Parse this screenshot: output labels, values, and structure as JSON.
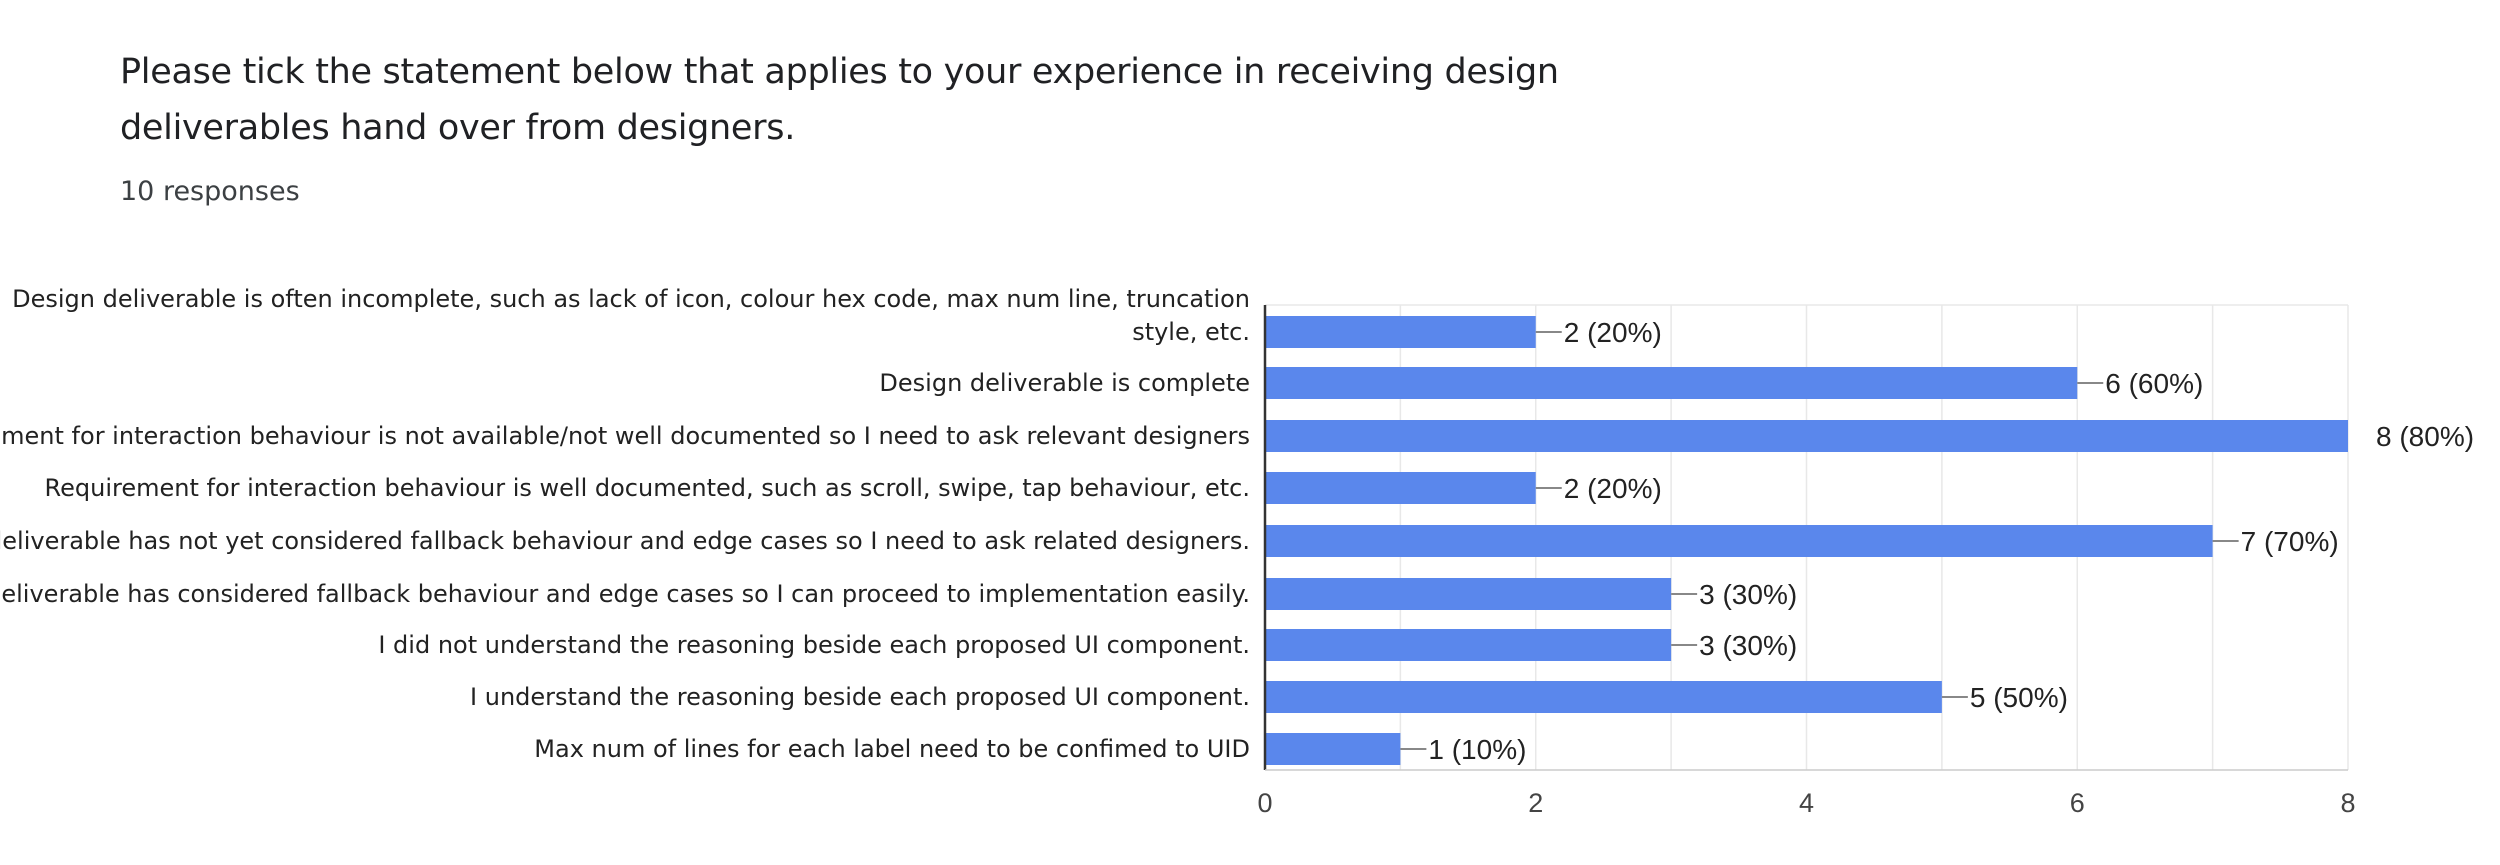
{
  "question": {
    "title": "Please tick the statement below that applies to your experience in receiving design deliverables hand over from designers.",
    "responses": "10 responses"
  },
  "colors": {
    "bar": "#5a87ec",
    "grid": "#e8e8e8",
    "axis": "#333333"
  },
  "chart_data": {
    "type": "bar",
    "orientation": "horizontal",
    "categories": [
      [
        "Design deliverable is often incomplete, such as lack of icon, colour hex code, max num line, truncation",
        "style, etc."
      ],
      [
        "Design deliverable is complete"
      ],
      [
        "Requirement for interaction behaviour is not available/not well documented so I need to ask relevant designers"
      ],
      [
        "Requirement for interaction behaviour is well documented, such as scroll, swipe, tap behaviour, etc."
      ],
      [
        "Design deliverable has not yet considered fallback behaviour and edge cases so I need to ask related designers."
      ],
      [
        "Design deliverable has considered fallback behaviour and edge cases so I can proceed to implementation easily."
      ],
      [
        "I did not understand the reasoning beside each proposed UI component."
      ],
      [
        "I understand the reasoning beside each proposed UI component."
      ],
      [
        "Max num of lines for each label need to be confimed to UID"
      ]
    ],
    "values": [
      2,
      6,
      8,
      2,
      7,
      3,
      3,
      5,
      1
    ],
    "data_labels": [
      "2 (20%)",
      "6 (60%)",
      "8 (80%)",
      "2 (20%)",
      "7 (70%)",
      "3 (30%)",
      "3 (30%)",
      "5 (50%)",
      "1 (10%)"
    ],
    "xlim": [
      0,
      8
    ],
    "xticks": [
      0,
      2,
      4,
      6,
      8
    ],
    "grid": true,
    "legend": "none"
  }
}
